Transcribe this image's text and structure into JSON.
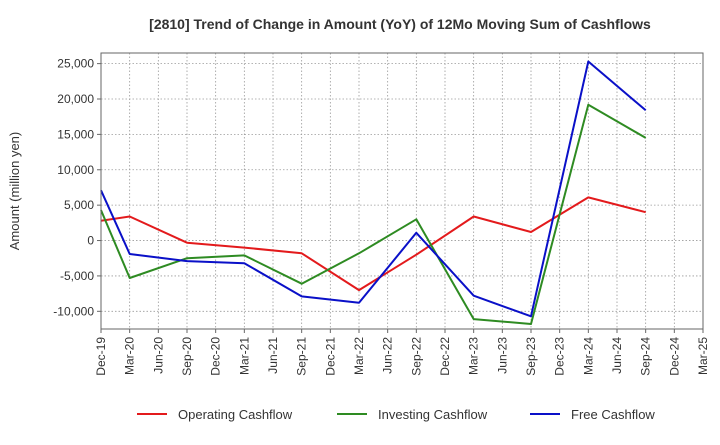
{
  "chart_data": {
    "type": "line",
    "title": "[2810]  Trend of Change in Amount (YoY) of 12Mo Moving Sum of Cashflows",
    "xlabel": "",
    "ylabel": "Amount (million yen)",
    "ylim": [
      -12500,
      26500
    ],
    "yticks": [
      -10000,
      -5000,
      0,
      5000,
      10000,
      15000,
      20000,
      25000
    ],
    "ytick_labels": [
      "-10,000",
      "-5,000",
      "0",
      "5,000",
      "10,000",
      "15,000",
      "20,000",
      "25,000"
    ],
    "categories": [
      "Dec-19",
      "Mar-20",
      "Jun-20",
      "Sep-20",
      "Dec-20",
      "Mar-21",
      "Jun-21",
      "Sep-21",
      "Dec-21",
      "Mar-22",
      "Jun-22",
      "Sep-22",
      "Dec-22",
      "Mar-23",
      "Jun-23",
      "Sep-23",
      "Dec-23",
      "Mar-24",
      "Jun-24",
      "Sep-24",
      "Dec-24",
      "Mar-25"
    ],
    "grid": true,
    "legend_position": "bottom",
    "series": [
      {
        "name": "Operating Cashflow",
        "color": "#e31a1c",
        "values": [
          2800,
          3400,
          null,
          -300,
          null,
          -1000,
          null,
          -1800,
          null,
          -7000,
          null,
          -2000,
          null,
          3400,
          null,
          1200,
          null,
          6100,
          null,
          4000,
          null,
          null
        ]
      },
      {
        "name": "Investing Cashflow",
        "color": "#2e8b22",
        "values": [
          4300,
          -5300,
          null,
          -2500,
          null,
          -2100,
          null,
          -6100,
          null,
          -1800,
          null,
          3000,
          null,
          -11100,
          null,
          -11800,
          null,
          19200,
          null,
          14500,
          null,
          null
        ]
      },
      {
        "name": "Free Cashflow",
        "color": "#0a10c8",
        "values": [
          7100,
          -1900,
          null,
          -2900,
          null,
          -3200,
          null,
          -7900,
          null,
          -8800,
          null,
          1100,
          null,
          -7800,
          null,
          -10700,
          null,
          25300,
          null,
          18400,
          null,
          null
        ]
      }
    ]
  }
}
